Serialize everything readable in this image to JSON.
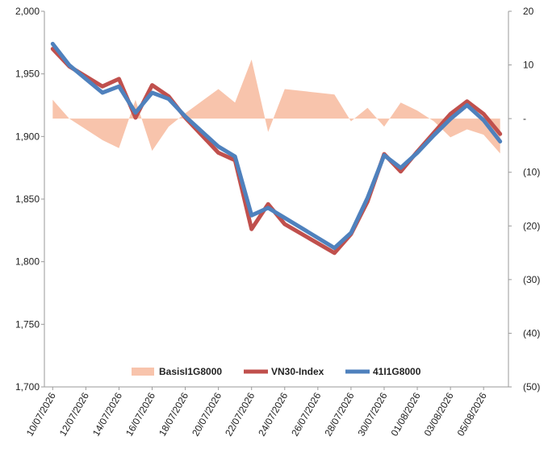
{
  "chart_data": {
    "type": "line",
    "x": [
      "10/07/2026",
      "11/07/2026",
      "12/07/2026",
      "13/07/2026",
      "14/07/2026",
      "15/07/2026",
      "16/07/2026",
      "17/07/2026",
      "18/07/2026",
      "19/07/2026",
      "20/07/2026",
      "21/07/2026",
      "22/07/2026",
      "23/07/2026",
      "24/07/2026",
      "25/07/2026",
      "26/07/2026",
      "27/07/2026",
      "28/07/2026",
      "29/07/2026",
      "30/07/2026",
      "31/07/2026",
      "01/08/2026",
      "02/08/2026",
      "03/08/2026",
      "04/08/2026",
      "05/08/2026",
      "06/08/2026"
    ],
    "x_tick_labels": [
      "10/07/2026",
      "12/07/2026",
      "14/07/2026",
      "16/07/2026",
      "18/07/2026",
      "20/07/2026",
      "22/07/2026",
      "24/07/2026",
      "26/07/2026",
      "28/07/2026",
      "30/07/2026",
      "01/08/2026",
      "03/08/2026",
      "05/08/2026"
    ],
    "series": [
      {
        "name": "BasisI1G8000",
        "type": "area",
        "axis": "right",
        "color": "#f8c4ac",
        "points": [
          [
            "10/07/2026",
            3.5
          ],
          [
            "11/07/2026",
            0
          ],
          [
            "13/07/2026",
            -4
          ],
          [
            "14/07/2026",
            -5.5
          ],
          [
            "15/07/2026",
            3.5
          ],
          [
            "16/07/2026",
            -6
          ],
          [
            "17/07/2026",
            -1.5
          ],
          [
            "18/07/2026",
            1
          ],
          [
            "20/07/2026",
            5.5
          ],
          [
            "21/07/2026",
            3
          ],
          [
            "22/07/2026",
            11
          ],
          [
            "23/07/2026",
            -2.5
          ],
          [
            "24/07/2026",
            5.5
          ],
          [
            "27/07/2026",
            4.5
          ],
          [
            "28/07/2026",
            -0.5
          ],
          [
            "29/07/2026",
            2
          ],
          [
            "30/07/2026",
            -1.5
          ],
          [
            "31/07/2026",
            3
          ],
          [
            "01/08/2026",
            1.5
          ],
          [
            "02/08/2026",
            -0.5
          ],
          [
            "03/08/2026",
            -3.5
          ],
          [
            "04/08/2026",
            -2
          ],
          [
            "05/08/2026",
            -3
          ],
          [
            "06/08/2026",
            -6.5
          ]
        ]
      },
      {
        "name": "VN30-Index",
        "type": "line",
        "axis": "left",
        "color": "#c0504d",
        "points": [
          [
            "10/07/2026",
            1970
          ],
          [
            "11/07/2026",
            1956
          ],
          [
            "13/07/2026",
            1940
          ],
          [
            "14/07/2026",
            1946
          ],
          [
            "15/07/2026",
            1915
          ],
          [
            "16/07/2026",
            1941
          ],
          [
            "17/07/2026",
            1932
          ],
          [
            "18/07/2026",
            1915
          ],
          [
            "20/07/2026",
            1887
          ],
          [
            "21/07/2026",
            1881
          ],
          [
            "22/07/2026",
            1826
          ],
          [
            "23/07/2026",
            1846
          ],
          [
            "24/07/2026",
            1830
          ],
          [
            "27/07/2026",
            1807
          ],
          [
            "28/07/2026",
            1822
          ],
          [
            "29/07/2026",
            1848
          ],
          [
            "30/07/2026",
            1886
          ],
          [
            "31/07/2026",
            1872
          ],
          [
            "01/08/2026",
            1888
          ],
          [
            "02/08/2026",
            1903
          ],
          [
            "03/08/2026",
            1918
          ],
          [
            "04/08/2026",
            1928
          ],
          [
            "05/08/2026",
            1918
          ],
          [
            "06/08/2026",
            1902
          ]
        ]
      },
      {
        "name": "41I1G8000",
        "type": "line",
        "axis": "left",
        "color": "#4f81bd",
        "points": [
          [
            "10/07/2026",
            1974
          ],
          [
            "11/07/2026",
            1957
          ],
          [
            "13/07/2026",
            1935
          ],
          [
            "14/07/2026",
            1940
          ],
          [
            "15/07/2026",
            1919
          ],
          [
            "16/07/2026",
            1935
          ],
          [
            "17/07/2026",
            1930
          ],
          [
            "18/07/2026",
            1916
          ],
          [
            "20/07/2026",
            1892
          ],
          [
            "21/07/2026",
            1884
          ],
          [
            "22/07/2026",
            1837
          ],
          [
            "23/07/2026",
            1843
          ],
          [
            "24/07/2026",
            1835
          ],
          [
            "27/07/2026",
            1811
          ],
          [
            "28/07/2026",
            1823
          ],
          [
            "29/07/2026",
            1851
          ],
          [
            "30/07/2026",
            1885
          ],
          [
            "31/07/2026",
            1875
          ],
          [
            "01/08/2026",
            1887
          ],
          [
            "02/08/2026",
            1901
          ],
          [
            "03/08/2026",
            1914
          ],
          [
            "04/08/2026",
            1925
          ],
          [
            "05/08/2026",
            1913
          ],
          [
            "06/08/2026",
            1896
          ]
        ]
      }
    ],
    "y_left": {
      "ylim": [
        1700,
        2000
      ],
      "ticks": [
        1700,
        1750,
        1800,
        1850,
        1900,
        1950,
        2000
      ],
      "tick_labels": [
        "1,700",
        "1,750",
        "1,800",
        "1,850",
        "1,900",
        "1,950",
        "2,000"
      ]
    },
    "y_right": {
      "ylim": [
        -50,
        20
      ],
      "ticks": [
        -50,
        -40,
        -30,
        -20,
        -10,
        0,
        10,
        20
      ],
      "tick_labels": [
        "(50)",
        "(40)",
        "(30)",
        "(20)",
        "(10)",
        "-",
        "10",
        "20"
      ]
    },
    "legend": {
      "position": "bottom-inside",
      "entries": [
        "BasisI1G8000",
        "VN30-Index",
        "41I1G8000"
      ]
    },
    "grid": false
  }
}
